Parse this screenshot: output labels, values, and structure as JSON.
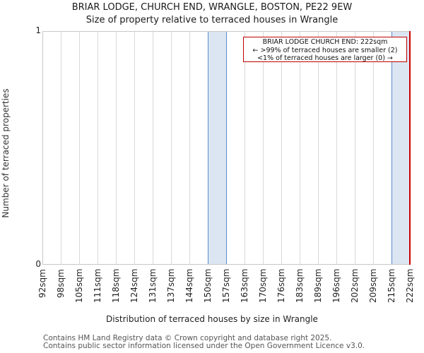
{
  "header": {
    "title": "BRIAR LODGE, CHURCH END, WRANGLE, BOSTON, PE22 9EW",
    "subtitle": "Size of property relative to terraced houses in Wrangle"
  },
  "axes": {
    "ylabel": "Number of terraced properties",
    "xlabel": "Distribution of terraced houses by size in Wrangle",
    "yticks": [
      "0",
      "1"
    ],
    "xticks": [
      "92sqm",
      "98sqm",
      "105sqm",
      "111sqm",
      "118sqm",
      "124sqm",
      "131sqm",
      "137sqm",
      "144sqm",
      "150sqm",
      "157sqm",
      "163sqm",
      "170sqm",
      "176sqm",
      "183sqm",
      "189sqm",
      "196sqm",
      "202sqm",
      "209sqm",
      "215sqm",
      "222sqm"
    ]
  },
  "annotation": {
    "line1": "BRIAR LODGE CHURCH END: 222sqm",
    "line2": "← >99% of terraced houses are smaller (2)",
    "line3": "<1% of terraced houses are larger (0) →"
  },
  "footer": {
    "line1": "Contains HM Land Registry data © Crown copyright and database right 2025.",
    "line2": "Contains public sector information licensed under the Open Government Licence v3.0."
  },
  "colors": {
    "bar_fill": "#dce6f2",
    "bar_edge": "#5b8ccc",
    "marker": "#cc0000",
    "grid": "#d9d9d9"
  },
  "chart_data": {
    "type": "bar",
    "title": "BRIAR LODGE, CHURCH END, WRANGLE, BOSTON, PE22 9EW",
    "subtitle": "Size of property relative to terraced houses in Wrangle",
    "xlabel": "Distribution of terraced houses by size in Wrangle",
    "ylabel": "Number of terraced properties",
    "bin_edges": [
      92,
      98,
      105,
      111,
      118,
      124,
      131,
      137,
      144,
      150,
      157,
      163,
      170,
      176,
      183,
      189,
      196,
      202,
      209,
      215,
      222
    ],
    "categories": [
      "92-98",
      "98-105",
      "105-111",
      "111-118",
      "118-124",
      "124-131",
      "131-137",
      "137-144",
      "144-150",
      "150-157",
      "157-163",
      "163-170",
      "170-176",
      "176-183",
      "183-189",
      "189-196",
      "196-202",
      "202-209",
      "209-215",
      "215-222"
    ],
    "values": [
      0,
      0,
      0,
      0,
      0,
      0,
      0,
      0,
      0,
      1,
      0,
      0,
      0,
      0,
      0,
      0,
      0,
      0,
      0,
      1
    ],
    "ylim": [
      0,
      1
    ],
    "grid": true,
    "marker_value": 222,
    "annotation": "BRIAR LODGE CHURCH END: 222sqm; >99% of terraced houses are smaller (2); <1% of terraced houses are larger (0)"
  }
}
